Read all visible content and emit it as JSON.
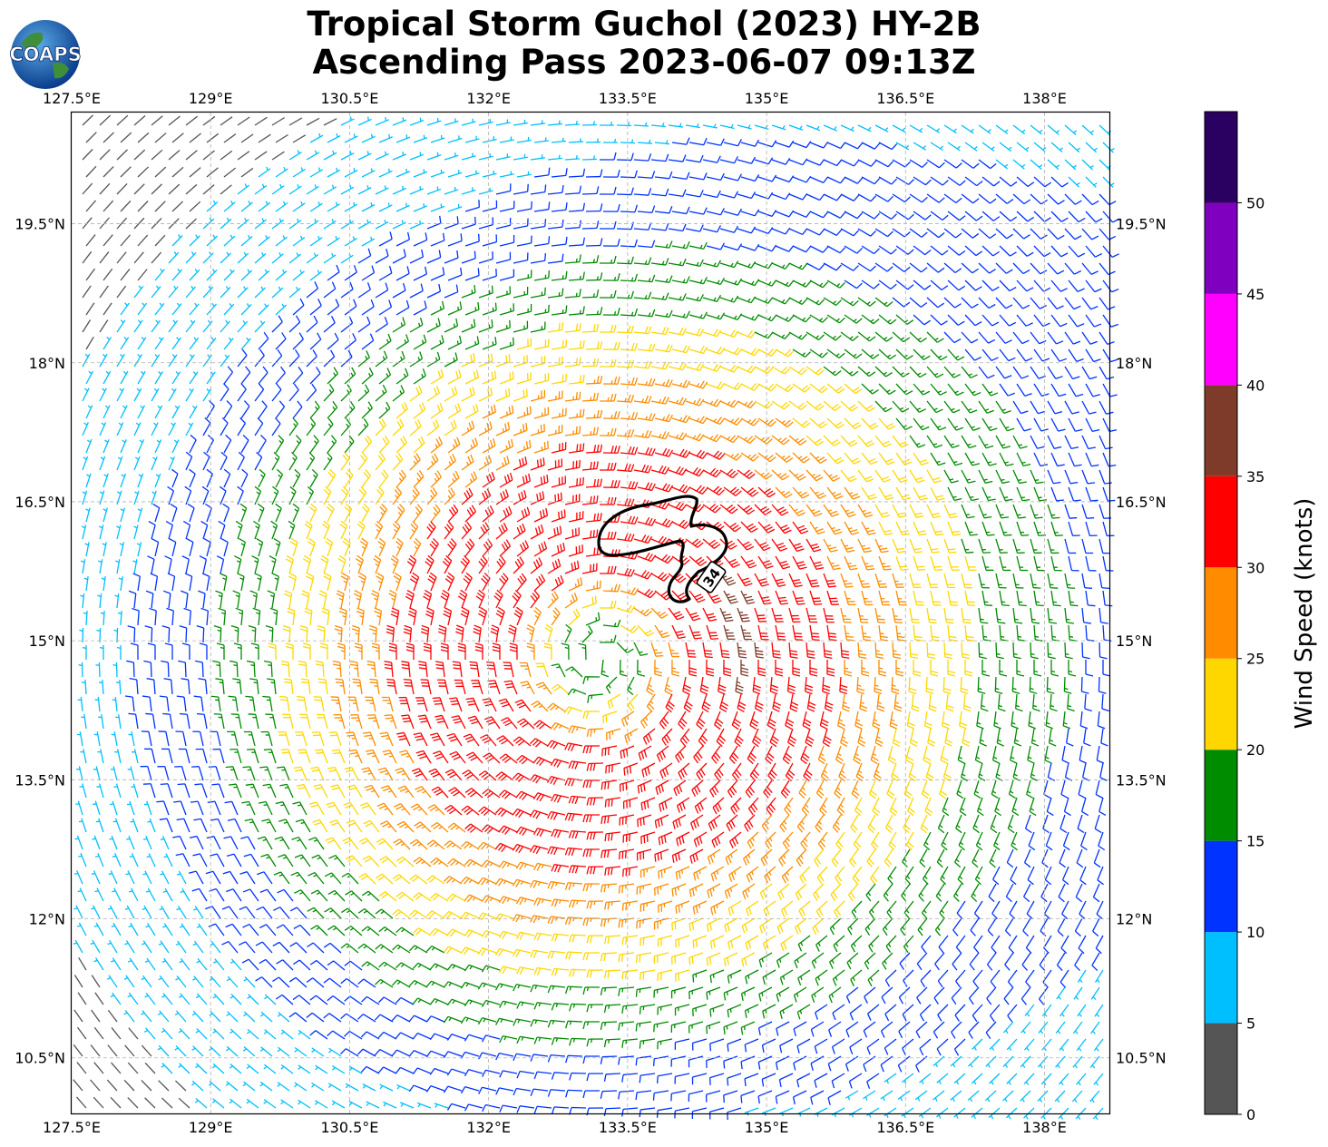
{
  "header": {
    "title_line1": "Tropical Storm Guchol (2023) HY-2B",
    "title_line2": "Ascending Pass 2023-06-07 09:13Z",
    "logo_text": "COAPS"
  },
  "map": {
    "lon_labels": [
      "127.5°E",
      "129°E",
      "130.5°E",
      "132°E",
      "133.5°E",
      "135°E",
      "136.5°E",
      "138°E"
    ],
    "lat_labels": [
      "19.5°N",
      "18°N",
      "16.5°N",
      "15°N",
      "13.5°N",
      "12°N",
      "10.5°N"
    ],
    "lon_range": [
      127.5,
      138.7
    ],
    "lat_range": [
      9.9,
      20.7
    ],
    "grid": true,
    "storm_center": {
      "lon": 133.2,
      "lat": 14.8
    },
    "contour_label": "34"
  },
  "colorbar": {
    "label": "Wind Speed (knots)",
    "ticks": [
      "0",
      "5",
      "10",
      "15",
      "20",
      "25",
      "30",
      "35",
      "40",
      "45",
      "50"
    ],
    "bins": [
      {
        "from": 0,
        "to": 5,
        "color": "#555555"
      },
      {
        "from": 5,
        "to": 10,
        "color": "#00bfff"
      },
      {
        "from": 10,
        "to": 15,
        "color": "#0033ff"
      },
      {
        "from": 15,
        "to": 20,
        "color": "#008c00"
      },
      {
        "from": 20,
        "to": 25,
        "color": "#ffd700"
      },
      {
        "from": 25,
        "to": 30,
        "color": "#ff8c00"
      },
      {
        "from": 30,
        "to": 35,
        "color": "#ff0000"
      },
      {
        "from": 35,
        "to": 40,
        "color": "#7f3b2a"
      },
      {
        "from": 40,
        "to": 45,
        "color": "#ff00ff"
      },
      {
        "from": 45,
        "to": 50,
        "color": "#8000c0"
      },
      {
        "from": 50,
        "to": 55,
        "color": "#2a0060"
      }
    ]
  }
}
